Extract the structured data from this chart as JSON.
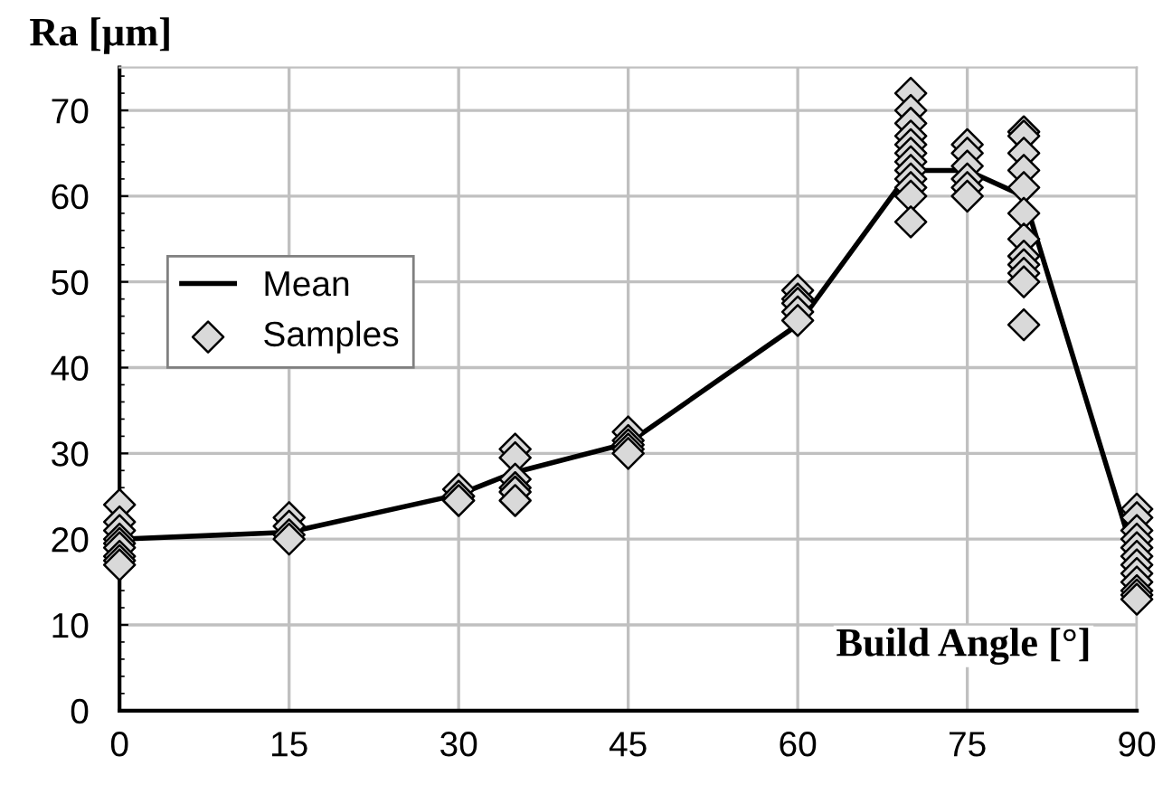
{
  "chart_data": {
    "type": "line",
    "xlabel": "Build Angle [°]",
    "ylabel": "Ra [µm]",
    "xlim": [
      0,
      90
    ],
    "xticks": [
      0,
      15,
      30,
      45,
      60,
      75,
      90
    ],
    "ylim": [
      0,
      75
    ],
    "yticks": [
      0,
      10,
      20,
      30,
      40,
      50,
      60,
      70
    ],
    "grid": true,
    "legend": "left",
    "series": [
      {
        "name": "Mean",
        "color": "#000000",
        "marker": "none",
        "line_style": "solid",
        "x": [
          0,
          15,
          30,
          35,
          45,
          60,
          70,
          75,
          80,
          90
        ],
        "values": [
          20,
          20.8,
          25.2,
          27.8,
          31.2,
          45,
          63,
          63,
          60,
          17
        ]
      },
      {
        "name": "Samples",
        "type": "scatter",
        "color": "#d9d9d9",
        "marker": "diamond",
        "x": [
          0,
          0,
          0,
          0,
          0,
          0,
          0,
          0,
          0,
          15,
          15,
          15,
          15,
          30,
          30,
          30,
          35,
          35,
          35,
          35,
          35,
          35,
          45,
          45,
          45,
          45,
          45,
          60,
          60,
          60,
          60,
          60,
          70,
          70,
          70,
          70,
          70,
          70,
          70,
          70,
          70,
          70,
          70,
          70,
          75,
          75,
          75,
          75,
          75,
          75,
          80,
          80,
          80,
          80,
          80,
          80,
          80,
          80,
          80,
          80,
          80,
          80,
          90,
          90,
          90,
          90,
          90,
          90,
          90,
          90,
          90,
          90,
          90,
          90
        ],
        "values": [
          24,
          22,
          21,
          20,
          19.5,
          19,
          18,
          17.5,
          17,
          22.5,
          21.5,
          20.5,
          20,
          25.8,
          25,
          24.5,
          30.5,
          29.5,
          27,
          26,
          25.5,
          24.5,
          32.5,
          31.5,
          31,
          30.5,
          30,
          49,
          48,
          47.5,
          46.5,
          45.5,
          72,
          70,
          68.5,
          67,
          66,
          65,
          64,
          63,
          62,
          61,
          60,
          57,
          66,
          65,
          63.5,
          62,
          61,
          60,
          67.5,
          67,
          65,
          63,
          61,
          58,
          55,
          53,
          52,
          51,
          50,
          45,
          23.5,
          22.5,
          21,
          20,
          19,
          18,
          17,
          16,
          15,
          14,
          13.5,
          13
        ]
      }
    ]
  }
}
